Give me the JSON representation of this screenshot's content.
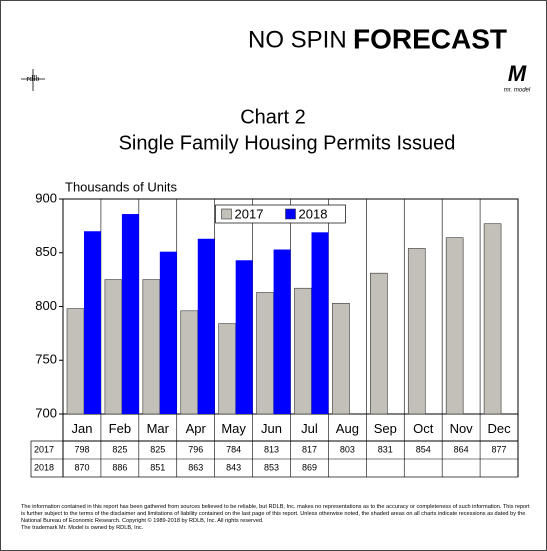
{
  "header": {
    "brand_left": "NO SPIN",
    "brand_right": "FORECAST",
    "logo_left": "rdlb",
    "logo_right": "M",
    "logo_right_sub": "mr. model"
  },
  "chart_data": {
    "type": "bar",
    "title": "Chart 2",
    "subtitle": "Single Family Housing Permits Issued",
    "y_label": "Thousands of Units",
    "categories": [
      "Jan",
      "Feb",
      "Mar",
      "Apr",
      "May",
      "Jun",
      "Jul",
      "Aug",
      "Sep",
      "Oct",
      "Nov",
      "Dec"
    ],
    "series": [
      {
        "name": "2017",
        "color": "#c3c0b9",
        "values": [
          798,
          825,
          825,
          796,
          784,
          813,
          817,
          803,
          831,
          854,
          864,
          877
        ]
      },
      {
        "name": "2018",
        "color": "#0000ff",
        "values": [
          870,
          886,
          851,
          863,
          843,
          853,
          869,
          null,
          null,
          null,
          null,
          null
        ]
      }
    ],
    "ylim": [
      700,
      900
    ],
    "yticks": [
      700,
      750,
      800,
      850,
      900
    ],
    "grid": false,
    "legend": "upper center"
  },
  "footnote": [
    "The information contained in this report has been gathered from sources believed to be reliable, but RDLB, Inc. makes no representations as to the accuracy or completeness of such information. This report is further subject to the terms of the disclaimer and limitations of liability contained on the last page of this report. Unless otherwise noted, the shaded areas on all charts indicate recessions as dated by the National Bureau of Economic Research. Copyright © 1989-2018 by RDLB, Inc. All rights reserved.",
    "The trademark Mr. Model is owned by RDLB, Inc."
  ]
}
